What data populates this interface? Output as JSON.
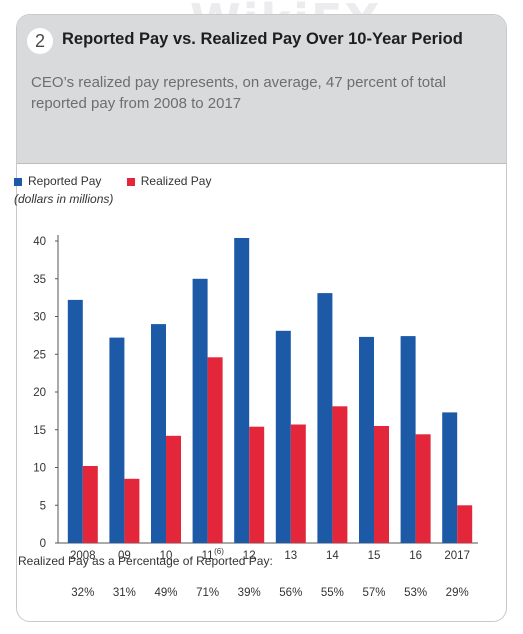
{
  "header": {
    "number": "2",
    "title": "Reported Pay vs. Realized Pay Over 10-Year Period",
    "subtitle": "CEO’s realized pay represents, on average, 47 percent of total reported pay from 2008 to 2017"
  },
  "legend": {
    "units": "(dollars in millions)"
  },
  "watermark": "WikiFX",
  "footer": {
    "caption": "Realized Pay as a Percentage of Reported Pay:",
    "percentages": [
      "32%",
      "31%",
      "49%",
      "71%",
      "39%",
      "56%",
      "55%",
      "57%",
      "53%",
      "29%"
    ]
  },
  "colors": {
    "reported": "#1c5aa8",
    "realized": "#e3263a",
    "header_bg": "#d9dadb"
  },
  "chart_data": {
    "type": "bar",
    "categories": [
      "2008",
      "09",
      "10",
      "11",
      "12",
      "13",
      "14",
      "15",
      "16",
      "2017"
    ],
    "category_footnote": {
      "index": 3,
      "text": "(6)"
    },
    "series": [
      {
        "name": "Reported Pay",
        "values": [
          32.2,
          27.2,
          29,
          35,
          40.4,
          28.1,
          33.1,
          27.3,
          27.4,
          17.3
        ]
      },
      {
        "name": "Realized Pay",
        "values": [
          10.2,
          8.5,
          14.2,
          24.6,
          15.4,
          15.7,
          18.1,
          15.5,
          14.4,
          5
        ]
      }
    ],
    "yticks": [
      0,
      5,
      10,
      15,
      20,
      25,
      30,
      35,
      40
    ],
    "ylim": [
      0,
      40
    ],
    "grid": false,
    "legend_position": "top-left"
  }
}
